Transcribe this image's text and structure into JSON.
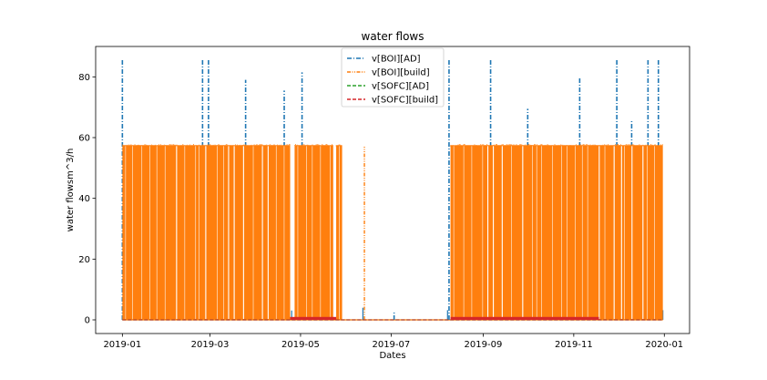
{
  "chart_data": {
    "type": "line",
    "title": "water flows",
    "xlabel": "Dates",
    "ylabel": "water flowsm^3/h",
    "x_range": [
      "2018-12-14",
      "2020-01-18"
    ],
    "ylim": [
      -4.5,
      90
    ],
    "x_ticks": [
      "2019-01",
      "2019-03",
      "2019-05",
      "2019-07",
      "2019-09",
      "2019-11",
      "2020-01"
    ],
    "x_tick_dates": [
      "2019-01-01",
      "2019-03-01",
      "2019-05-01",
      "2019-07-01",
      "2019-09-01",
      "2019-11-01",
      "2020-01-01"
    ],
    "y_ticks": [
      0,
      20,
      40,
      60,
      80
    ],
    "grid": false,
    "legend_position": "top-center",
    "series": [
      {
        "name": "v[BOI][AD]",
        "color": "#1f77b4",
        "dash": "dashdot",
        "spikes": [
          {
            "date": "2019-01-01",
            "value": 86
          },
          {
            "date": "2019-02-24",
            "value": 86
          },
          {
            "date": "2019-02-28",
            "value": 86
          },
          {
            "date": "2019-03-25",
            "value": 79
          },
          {
            "date": "2019-04-20",
            "value": 75.5
          },
          {
            "date": "2019-05-02",
            "value": 81.5
          },
          {
            "date": "2019-07-03",
            "value": 2.5
          },
          {
            "date": "2019-08-09",
            "value": 86
          },
          {
            "date": "2019-09-06",
            "value": 86
          },
          {
            "date": "2019-10-01",
            "value": 69.5
          },
          {
            "date": "2019-11-05",
            "value": 80
          },
          {
            "date": "2019-11-30",
            "value": 86
          },
          {
            "date": "2019-12-10",
            "value": 65.5
          },
          {
            "date": "2019-12-21",
            "value": 86
          },
          {
            "date": "2019-12-28",
            "value": 86
          }
        ]
      },
      {
        "name": "v[BOI][build]",
        "color": "#ff7f0e",
        "dash": "dashdotdot",
        "typical_max": 57.5,
        "active_periods": [
          [
            "2019-01-01",
            "2019-04-24"
          ],
          [
            "2019-04-27",
            "2019-05-23"
          ],
          [
            "2019-05-25",
            "2019-05-29"
          ],
          [
            "2019-08-10",
            "2019-12-31"
          ]
        ],
        "isolated_spikes": [
          {
            "date": "2019-06-13",
            "value": 57
          }
        ]
      },
      {
        "name": "v[SOFC][AD]",
        "color": "#2ca02c",
        "dash": "dashed",
        "value": 0
      },
      {
        "name": "v[SOFC][build]",
        "color": "#d62728",
        "dash": "dashed",
        "active_periods": [
          [
            "2019-04-24",
            "2019-05-25"
          ],
          [
            "2019-08-10",
            "2019-11-18"
          ]
        ],
        "typical_value": 0.6
      }
    ]
  }
}
